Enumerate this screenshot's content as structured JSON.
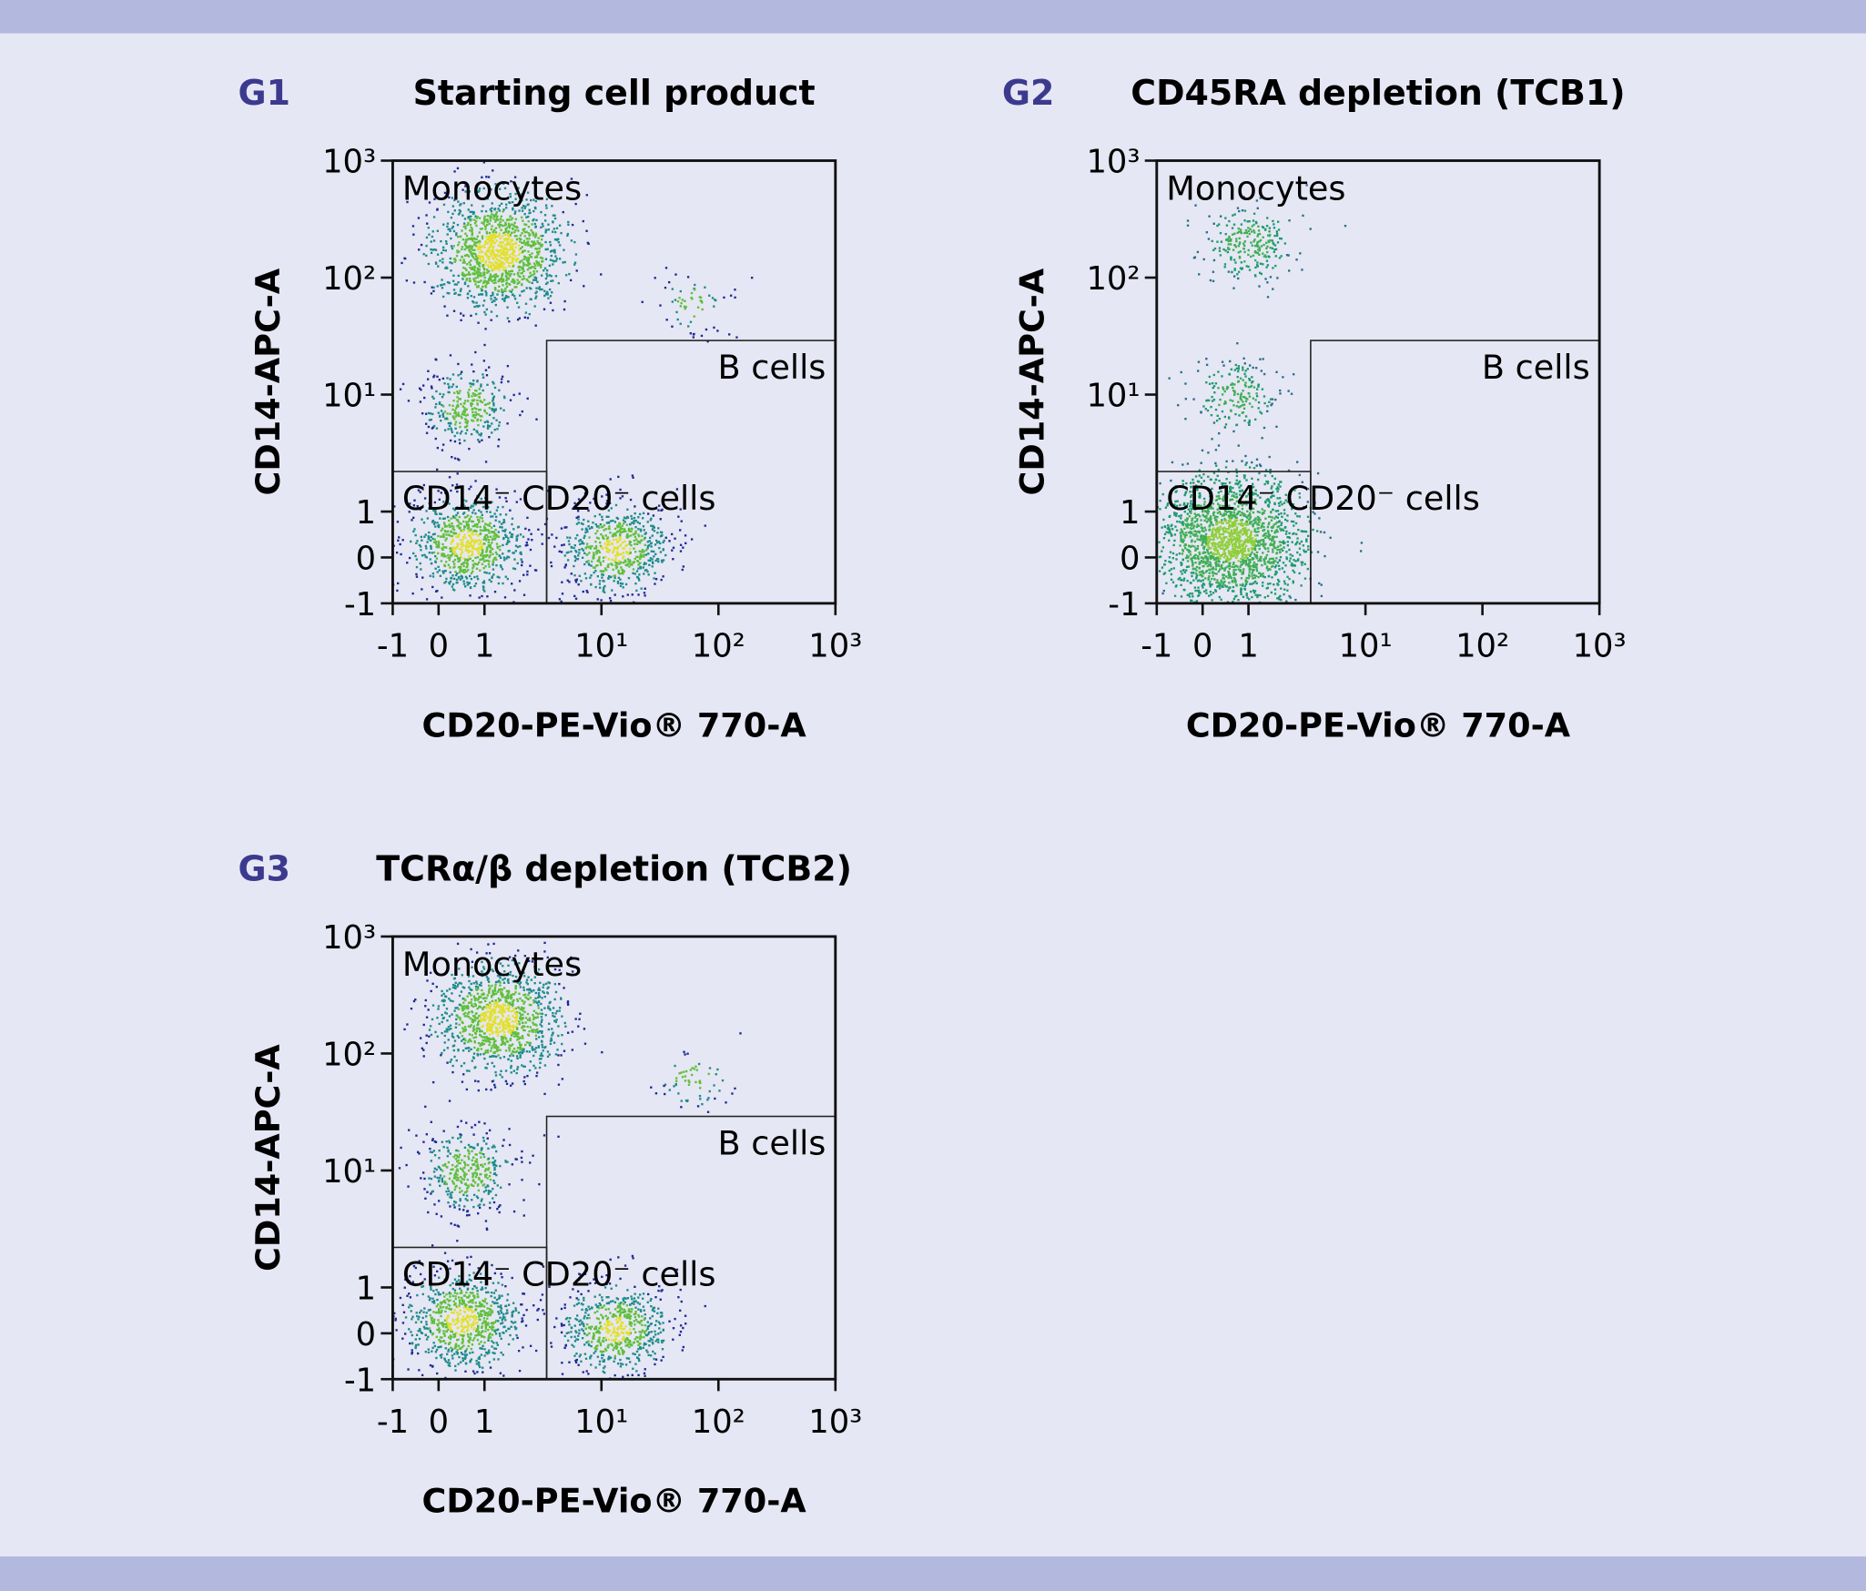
{
  "chart_data": [
    {
      "type": "scatter",
      "panel": "G1",
      "title": "Starting cell product",
      "xlabel": "CD20-PE-Vio® 770-A",
      "ylabel": "CD14-APC-A",
      "xscale": "biex",
      "yscale": "biex",
      "xlim": [
        -1,
        1000
      ],
      "ylim": [
        -1,
        1000
      ],
      "xticks": [
        -1,
        0,
        1,
        {
          "value": 10,
          "label": "10¹"
        },
        {
          "value": 100,
          "label": "10²"
        },
        {
          "value": 1000,
          "label": "10³"
        }
      ],
      "yticks": [
        -1,
        0,
        1,
        {
          "value": 10,
          "label": "10¹"
        },
        {
          "value": 100,
          "label": "10²"
        },
        {
          "value": 1000,
          "label": "10³"
        }
      ],
      "x": [
        1.3,
        0.6,
        13,
        0.6,
        60
      ],
      "values": [
        170,
        0.3,
        0.2,
        8,
        60
      ],
      "sizes": [
        40,
        25,
        20,
        10,
        2
      ],
      "annotation": "Monocytes",
      "gates": [
        {
          "label": "B cells",
          "x": [
            3.4,
            1000
          ],
          "y": [
            -1,
            29
          ]
        },
        {
          "label": "CD14⁻ CD20⁻ cells",
          "x": [
            -1,
            3.4
          ],
          "y": [
            -1,
            2.2
          ]
        }
      ],
      "colors": [
        "#1e2a96",
        "#1f8c8a",
        "#5fbf3a",
        "#e2e02c"
      ]
    },
    {
      "type": "scatter",
      "panel": "G2",
      "title": "CD45RA depletion (TCB1)",
      "xlabel": "CD20-PE-Vio® 770-A",
      "ylabel": "CD14-APC-A",
      "xscale": "biex",
      "yscale": "biex",
      "xlim": [
        -1,
        1000
      ],
      "ylim": [
        -1,
        1000
      ],
      "xticks": [
        -1,
        0,
        1,
        {
          "value": 10,
          "label": "10¹"
        },
        {
          "value": 100,
          "label": "10²"
        },
        {
          "value": 1000,
          "label": "10³"
        }
      ],
      "yticks": [
        -1,
        0,
        1,
        {
          "value": 10,
          "label": "10¹"
        },
        {
          "value": 100,
          "label": "10²"
        },
        {
          "value": 1000,
          "label": "10³"
        }
      ],
      "x": [
        1,
        0.6,
        0.7
      ],
      "values": [
        200,
        0.4,
        10
      ],
      "sizes": [
        8,
        60,
        6
      ],
      "annotation": "Monocytes",
      "gates": [
        {
          "label": "B cells",
          "x": [
            3.4,
            1000
          ],
          "y": [
            -1,
            29
          ]
        },
        {
          "label": "CD14⁻ CD20⁻ cells",
          "x": [
            -1,
            3.4
          ],
          "y": [
            -1,
            2.2
          ]
        }
      ],
      "colors": [
        "#2a6f8a",
        "#1f9a70",
        "#3fae55",
        "#8fcf3a"
      ]
    },
    {
      "type": "scatter",
      "panel": "G3",
      "title": "TCRα/β depletion (TCB2)",
      "xlabel": "CD20-PE-Vio® 770-A",
      "ylabel": "CD14-APC-A",
      "xscale": "biex",
      "yscale": "biex",
      "xlim": [
        -1,
        1000
      ],
      "ylim": [
        -1,
        1000
      ],
      "xticks": [
        -1,
        0,
        1,
        {
          "value": 10,
          "label": "10¹"
        },
        {
          "value": 100,
          "label": "10²"
        },
        {
          "value": 1000,
          "label": "10³"
        }
      ],
      "yticks": [
        -1,
        0,
        1,
        {
          "value": 10,
          "label": "10¹"
        },
        {
          "value": 100,
          "label": "10²"
        },
        {
          "value": 1000,
          "label": "10³"
        }
      ],
      "x": [
        1.3,
        0.5,
        13,
        0.6,
        60
      ],
      "values": [
        200,
        0.3,
        0.1,
        10,
        60
      ],
      "sizes": [
        35,
        25,
        20,
        12,
        2
      ],
      "annotation": "Monocytes",
      "gates": [
        {
          "label": "B cells",
          "x": [
            3.4,
            1000
          ],
          "y": [
            -1,
            29
          ]
        },
        {
          "label": "CD14⁻ CD20⁻ cells",
          "x": [
            -1,
            3.4
          ],
          "y": [
            -1,
            2.2
          ]
        }
      ],
      "colors": [
        "#1e2a96",
        "#1f8c8a",
        "#5fbf3a",
        "#e2e02c"
      ]
    }
  ]
}
